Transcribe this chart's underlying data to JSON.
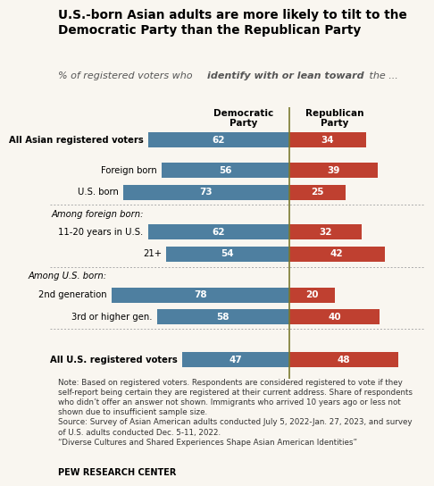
{
  "title_line1": "U.S.-born Asian adults are more likely to tilt to the",
  "title_line2": "Democratic Party than the Republican Party",
  "subtitle_plain": "% of registered voters who ",
  "subtitle_bold_italic": "identify with or lean toward",
  "subtitle_end": " the ...",
  "col_header_dem": "Democratic\nParty",
  "col_header_rep": "Republican\nParty",
  "categories": [
    "All Asian registered voters",
    "Foreign born",
    "U.S. born",
    "11-20 years in U.S.",
    "21+",
    "2nd generation",
    "3rd or higher gen.",
    "All U.S. registered voters"
  ],
  "dem_values": [
    62,
    56,
    73,
    62,
    54,
    78,
    58,
    47
  ],
  "rep_values": [
    34,
    39,
    25,
    32,
    42,
    20,
    40,
    48
  ],
  "dem_color": "#4e7fa0",
  "rep_color": "#bf4030",
  "divider_color": "#7a7a2e",
  "section_label_foreign": "Among foreign born:",
  "section_label_us": "Among U.S. born:",
  "bold_rows": [
    0,
    7
  ],
  "note_text": "Note: Based on registered voters. Respondents are considered registered to vote if they\nself-report being certain they are registered at their current address. Share of respondents\nwho didn’t offer an answer not shown. Immigrants who arrived 10 years ago or less not\nshown due to insufficient sample size.\nSource: Survey of Asian American adults conducted July 5, 2022-Jan. 27, 2023, and survey\nof U.S. adults conducted Dec. 5-11, 2022.\n“Diverse Cultures and Shared Experiences Shape Asian American Identities”",
  "footer": "PEW RESEARCH CENTER",
  "bg_color": "#f9f6f0"
}
